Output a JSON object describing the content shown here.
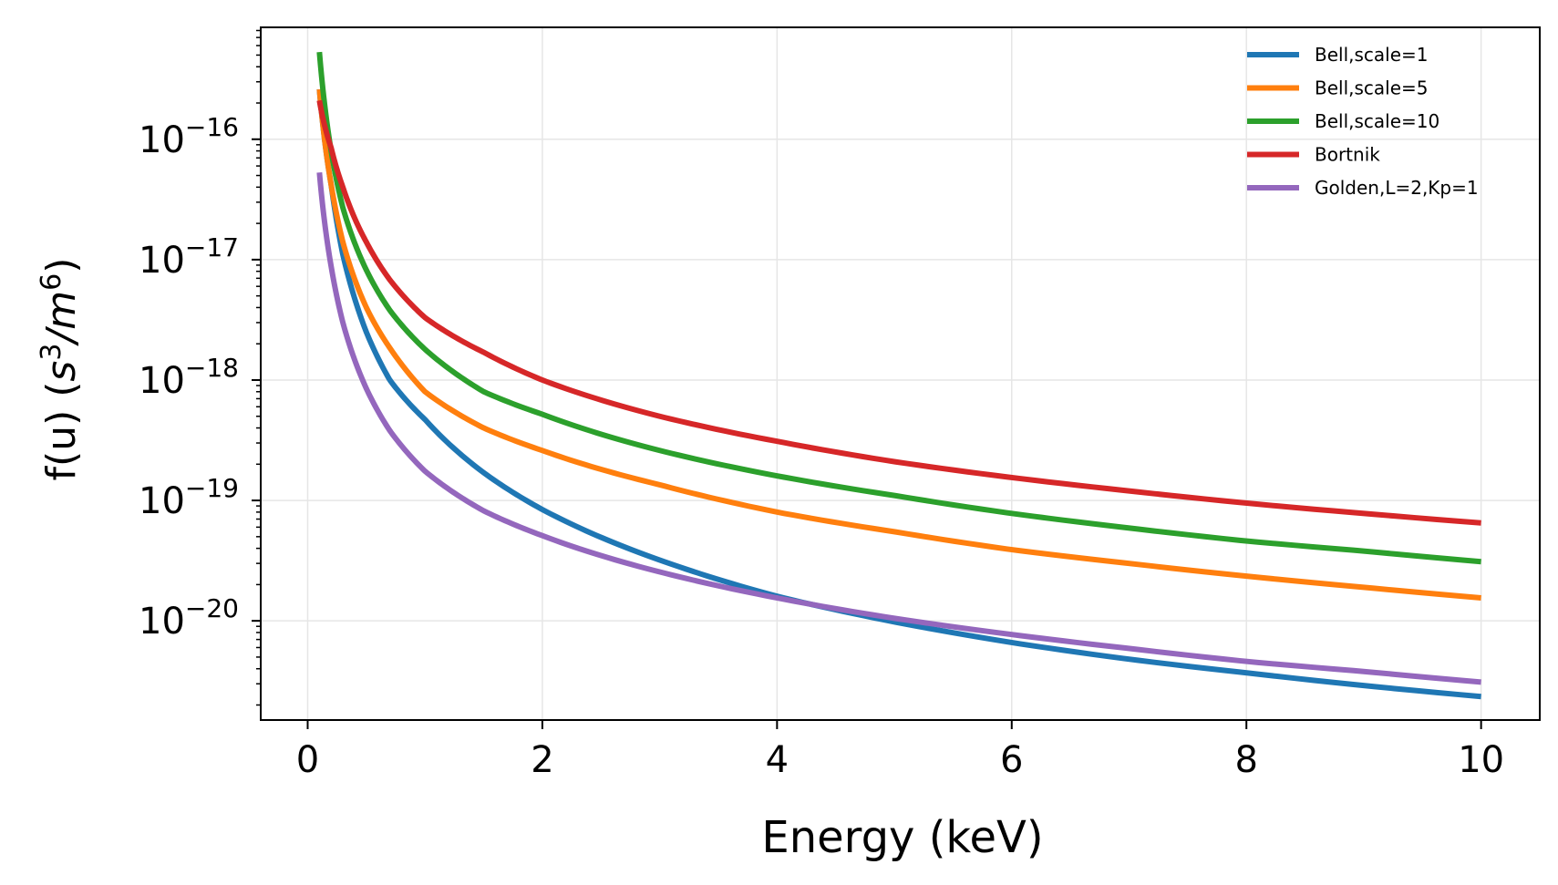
{
  "chart_data": {
    "type": "line",
    "title": "",
    "xlabel": "Energy (keV)",
    "ylabel": {
      "prefix": "f(u) (",
      "s": "s",
      "s_exp": "3",
      "slash": "/",
      "m": "m",
      "m_exp": "6",
      "suffix": ")"
    },
    "xlim": [
      -0.4,
      10.5
    ],
    "ylim": [
      1.5e-21,
      8.5e-16
    ],
    "yscale": "log",
    "grid": true,
    "legend_position": "top-right",
    "x_ticks": [
      0,
      2,
      4,
      6,
      8,
      10
    ],
    "x_tick_labels": [
      "0",
      "2",
      "4",
      "6",
      "8",
      "10"
    ],
    "y_ticks": [
      {
        "exp": -20,
        "base": "10",
        "sup": "−20"
      },
      {
        "exp": -19,
        "base": "10",
        "sup": "−19"
      },
      {
        "exp": -18,
        "base": "10",
        "sup": "−18"
      },
      {
        "exp": -17,
        "base": "10",
        "sup": "−17"
      },
      {
        "exp": -16,
        "base": "10",
        "sup": "−16"
      }
    ],
    "x": [
      0.1,
      0.2,
      0.3,
      0.5,
      0.7,
      1,
      1.5,
      2,
      3,
      4,
      5,
      6,
      7,
      8,
      9,
      10
    ],
    "series": [
      {
        "name": "Bell,scale=1",
        "color": "#1f77b4",
        "values": [
          2.6e-16,
          4.2e-17,
          1.1e-17,
          2.5e-18,
          1e-18,
          4.7e-19,
          1.7e-19,
          8.4e-20,
          3.2e-20,
          1.6e-20,
          9.8e-21,
          6.6e-21,
          4.8e-21,
          3.7e-21,
          2.9e-21,
          2.35e-21
        ]
      },
      {
        "name": "Bell,scale=5",
        "color": "#ff7f0e",
        "values": [
          2.6e-16,
          4.2e-17,
          1.4e-17,
          4e-18,
          1.85e-18,
          8e-19,
          4e-19,
          2.6e-19,
          1.35e-19,
          8e-20,
          5.5e-20,
          3.9e-20,
          3e-20,
          2.35e-20,
          1.9e-20,
          1.55e-20
        ]
      },
      {
        "name": "Bell,scale=10",
        "color": "#2ca02c",
        "values": [
          5.3e-16,
          8e-17,
          2.7e-17,
          8.2e-18,
          3.8e-18,
          1.8e-18,
          8e-19,
          5.2e-19,
          2.6e-19,
          1.6e-19,
          1.1e-19,
          7.8e-20,
          5.9e-20,
          4.6e-20,
          3.8e-20,
          3.1e-20
        ]
      },
      {
        "name": "Bortnik",
        "color": "#d62728",
        "values": [
          2.1e-16,
          8.5e-17,
          4e-17,
          1.4e-17,
          6.8e-18,
          3.3e-18,
          1.7e-18,
          1e-18,
          5e-19,
          3.1e-19,
          2.1e-19,
          1.55e-19,
          1.2e-19,
          9.5e-20,
          7.8e-20,
          6.5e-20
        ]
      },
      {
        "name": "Golden,L=2,Kp=1",
        "color": "#9467bd",
        "values": [
          5.3e-17,
          8.8e-18,
          3e-18,
          8.5e-19,
          3.8e-19,
          1.75e-19,
          8.2e-20,
          5.1e-20,
          2.55e-20,
          1.55e-20,
          1.05e-20,
          7.7e-21,
          5.9e-21,
          4.6e-21,
          3.8e-21,
          3.1e-21
        ]
      }
    ]
  }
}
